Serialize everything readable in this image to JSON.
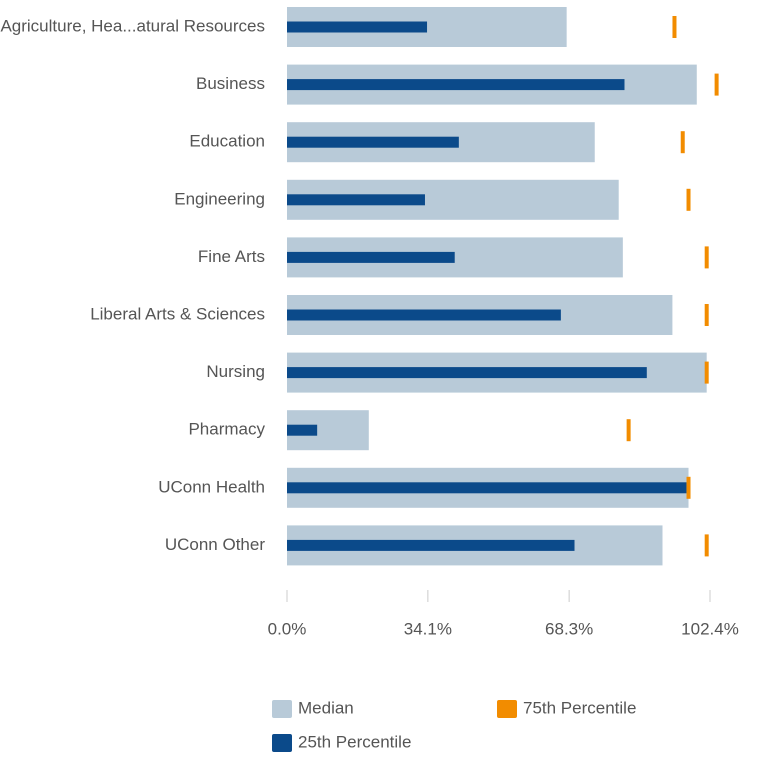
{
  "chart_data": {
    "type": "bar",
    "orientation": "horizontal",
    "categories": [
      "Agriculture, Hea...atural Resources",
      "Business",
      "Education",
      "Engineering",
      "Fine Arts",
      "Liberal Arts & Sciences",
      "Nursing",
      "Pharmacy",
      "UConn Health",
      "UConn Other"
    ],
    "series": [
      {
        "name": "Median",
        "color": "#b8cad8",
        "values": [
          67.7,
          99.2,
          74.5,
          80.3,
          81.3,
          93.3,
          101.6,
          19.8,
          97.2,
          90.9
        ]
      },
      {
        "name": "25th Percentile",
        "color": "#0b4a8a",
        "values": [
          33.9,
          81.7,
          41.6,
          33.4,
          40.6,
          66.3,
          87.1,
          7.3,
          96.7,
          69.6
        ]
      },
      {
        "name": "75th Percentile",
        "color": "#f28c00",
        "values": [
          93.8,
          104.0,
          95.8,
          97.2,
          101.6,
          101.6,
          101.6,
          82.7,
          97.2,
          101.6
        ]
      }
    ],
    "xlim": [
      0,
      102.4
    ],
    "xticks": [
      {
        "value": 0,
        "label": "0.0%"
      },
      {
        "value": 34.1,
        "label": "34.1%"
      },
      {
        "value": 68.3,
        "label": "68.3%"
      },
      {
        "value": 102.4,
        "label": "102.4%"
      }
    ]
  }
}
